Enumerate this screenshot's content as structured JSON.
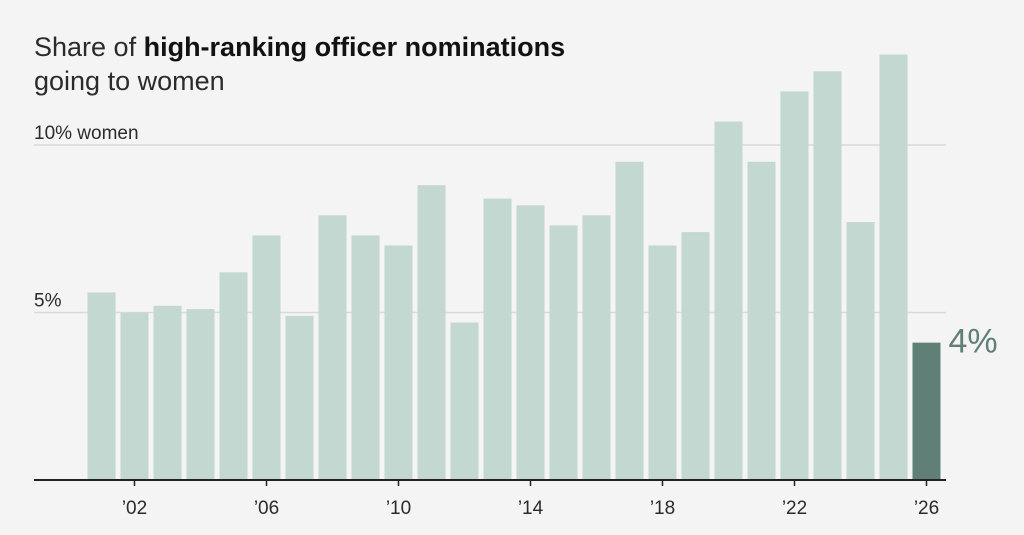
{
  "title": {
    "prefix": "Share of ",
    "bold": "high-ranking officer nominations",
    "line2": "going to women"
  },
  "colors": {
    "bar": "#c2d8d1",
    "highlight": "#607f76",
    "grid": "#d9d9d9",
    "axis": "#222222",
    "text": "#2b2b2b",
    "background": "#f4f4f4"
  },
  "chart_data": {
    "type": "bar",
    "title": "Share of high-ranking officer nominations going to women",
    "xlabel": "",
    "ylabel": "",
    "ylim": [
      0,
      12.6
    ],
    "grid": true,
    "yticks": [
      {
        "value": 10,
        "label": "10% women"
      },
      {
        "value": 5,
        "label": "5%"
      }
    ],
    "x_tick_labels": [
      {
        "year": 2002,
        "label": "’02"
      },
      {
        "year": 2006,
        "label": "’06"
      },
      {
        "year": 2010,
        "label": "’10"
      },
      {
        "year": 2014,
        "label": "’14"
      },
      {
        "year": 2018,
        "label": "’18"
      },
      {
        "year": 2022,
        "label": "’22"
      },
      {
        "year": 2026,
        "label": "’26"
      }
    ],
    "x": [
      2001,
      2002,
      2003,
      2004,
      2005,
      2006,
      2007,
      2008,
      2009,
      2010,
      2011,
      2012,
      2013,
      2014,
      2015,
      2016,
      2017,
      2018,
      2019,
      2020,
      2021,
      2022,
      2023,
      2024,
      2025,
      2026
    ],
    "values": [
      5.6,
      5.0,
      5.2,
      5.1,
      6.2,
      7.3,
      4.9,
      7.9,
      7.3,
      7.0,
      8.8,
      4.7,
      8.4,
      8.2,
      7.6,
      7.9,
      9.5,
      7.0,
      7.4,
      10.7,
      9.5,
      11.6,
      12.2,
      7.7,
      12.7,
      4.1
    ],
    "highlight": {
      "year": 2026,
      "label": "4%"
    }
  }
}
